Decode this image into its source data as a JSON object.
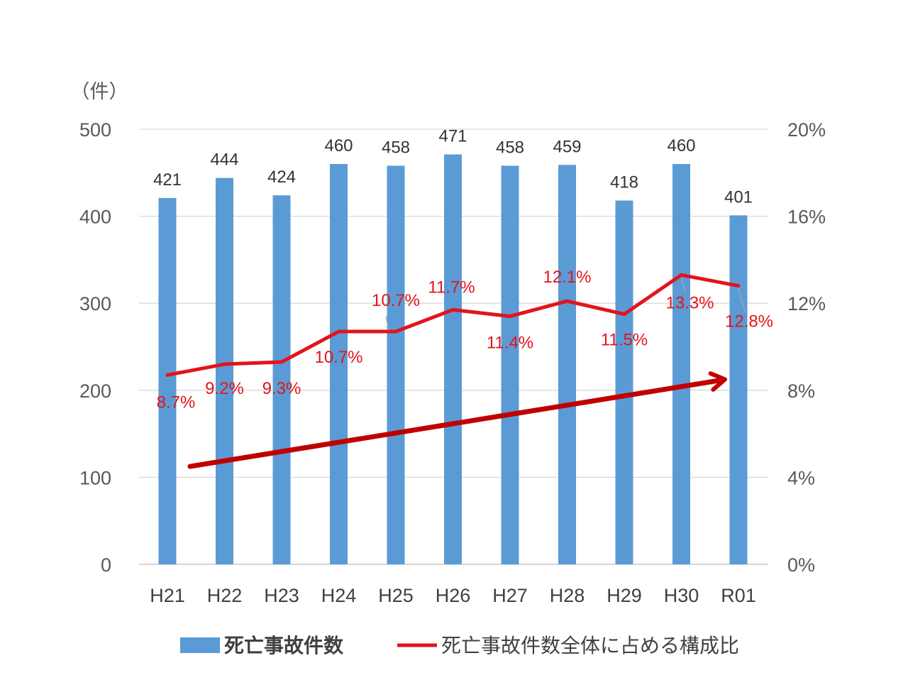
{
  "chart_data": {
    "type": "bar",
    "categories": [
      "H21",
      "H22",
      "H23",
      "H24",
      "H25",
      "H26",
      "H27",
      "H28",
      "H29",
      "H30",
      "R01"
    ],
    "series": [
      {
        "name": "死亡事故件数",
        "type": "bar",
        "axis": "left",
        "color": "#5B9BD5",
        "values": [
          421,
          444,
          424,
          460,
          458,
          471,
          458,
          459,
          418,
          460,
          401
        ],
        "labels": [
          "421",
          "444",
          "424",
          "460",
          "458",
          "471",
          "458",
          "459",
          "418",
          "460",
          "401"
        ]
      },
      {
        "name": "死亡事故件数全体に占める構成比",
        "type": "line",
        "axis": "right",
        "color": "#E3141B",
        "values": [
          8.7,
          9.2,
          9.3,
          10.7,
          10.7,
          11.7,
          11.4,
          12.1,
          11.5,
          13.3,
          12.8
        ],
        "labels": [
          "8.7%",
          "9.2%",
          "9.3%",
          "10.7%",
          "10.7%",
          "11.7%",
          "11.4%",
          "12.1%",
          "11.5%",
          "13.3%",
          "12.8%"
        ]
      }
    ],
    "left_axis": {
      "unit": "（件）",
      "ylim": [
        0,
        500
      ],
      "ticks": [
        0,
        100,
        200,
        300,
        400,
        500
      ],
      "tick_labels": [
        "0",
        "100",
        "200",
        "300",
        "400",
        "500"
      ]
    },
    "right_axis": {
      "ylim": [
        0,
        20
      ],
      "ticks": [
        0,
        4,
        8,
        12,
        16,
        20
      ],
      "tick_labels": [
        "0%",
        "4%",
        "8%",
        "12%",
        "16%",
        "20%"
      ]
    },
    "trend_arrow": {
      "color": "#C00000",
      "from_value": 4.5,
      "to_value": 8.5
    },
    "grid": true,
    "legend": {
      "position": "bottom",
      "items": [
        "死亡事故件数",
        "死亡事故件数全体に占める構成比"
      ]
    }
  }
}
